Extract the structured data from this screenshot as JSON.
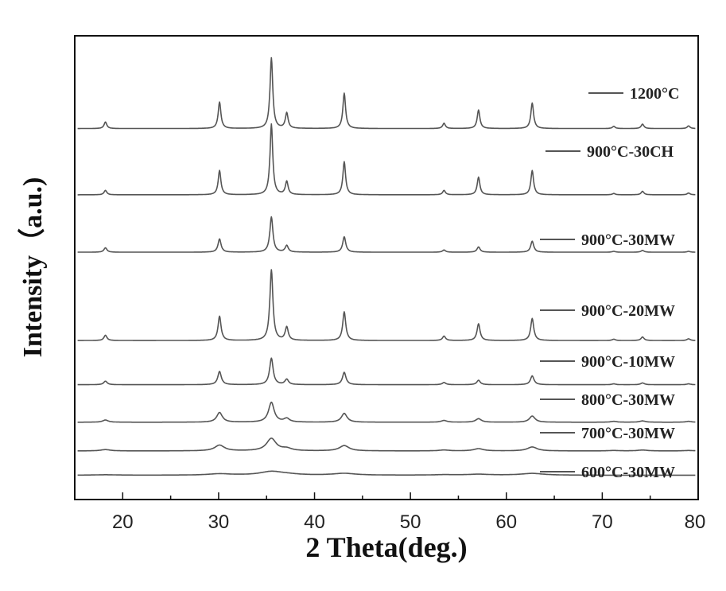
{
  "chart_data": {
    "type": "line",
    "xlabel": "2 Theta(deg.)",
    "ylabel": "Intensity（a.u.)",
    "xlim": [
      15,
      80
    ],
    "xticks": [
      20,
      30,
      40,
      50,
      60,
      70,
      80
    ],
    "y_ticks_shown": false,
    "grid": false,
    "legend": "right, beside each trace",
    "peak_positions": [
      18.2,
      30.1,
      35.5,
      37.1,
      43.1,
      53.5,
      57.1,
      62.7,
      71.2,
      74.2,
      79.0
    ],
    "series": [
      {
        "name": "1200°C",
        "offset": 8.4,
        "peak_heights": [
          0.15,
          0.6,
          1.6,
          0.35,
          0.8,
          0.12,
          0.42,
          0.58,
          0.05,
          0.1,
          0.06
        ],
        "width": 0.17
      },
      {
        "name": "900°C-30CH",
        "offset": 6.9,
        "peak_heights": [
          0.1,
          0.55,
          1.6,
          0.3,
          0.75,
          0.1,
          0.4,
          0.55,
          0.03,
          0.08,
          0.04
        ],
        "width": 0.17
      },
      {
        "name": "900°C-30MW",
        "offset": 5.6,
        "peak_heights": [
          0.1,
          0.3,
          0.8,
          0.15,
          0.35,
          0.05,
          0.12,
          0.25,
          0.02,
          0.04,
          0.02
        ],
        "width": 0.19
      },
      {
        "name": "900°C-20MW",
        "offset": 3.6,
        "peak_heights": [
          0.12,
          0.55,
          1.6,
          0.3,
          0.65,
          0.1,
          0.38,
          0.5,
          0.03,
          0.08,
          0.04
        ],
        "width": 0.19
      },
      {
        "name": "900°C-10MW",
        "offset": 2.6,
        "peak_heights": [
          0.08,
          0.3,
          0.6,
          0.12,
          0.28,
          0.05,
          0.1,
          0.2,
          0.02,
          0.04,
          0.02
        ],
        "width": 0.22
      },
      {
        "name": "800°C-30MW",
        "offset": 1.75,
        "peak_heights": [
          0.05,
          0.22,
          0.45,
          0.08,
          0.2,
          0.04,
          0.08,
          0.14,
          0.02,
          0.03,
          0.02
        ],
        "width": 0.35
      },
      {
        "name": "700°C-30MW",
        "offset": 1.1,
        "peak_heights": [
          0.03,
          0.13,
          0.28,
          0.05,
          0.12,
          0.02,
          0.05,
          0.09,
          0.01,
          0.02,
          0.01
        ],
        "width": 0.6
      },
      {
        "name": "600°C-30MW",
        "offset": 0.55,
        "peak_heights": [
          0.01,
          0.03,
          0.08,
          0.02,
          0.04,
          0.01,
          0.02,
          0.04,
          0.0,
          0.0,
          0.0
        ],
        "width": 1.4
      }
    ],
    "ylim": [
      0,
      10.5
    ],
    "colors": {
      "trace": "#555555",
      "frame": "#111111"
    }
  }
}
